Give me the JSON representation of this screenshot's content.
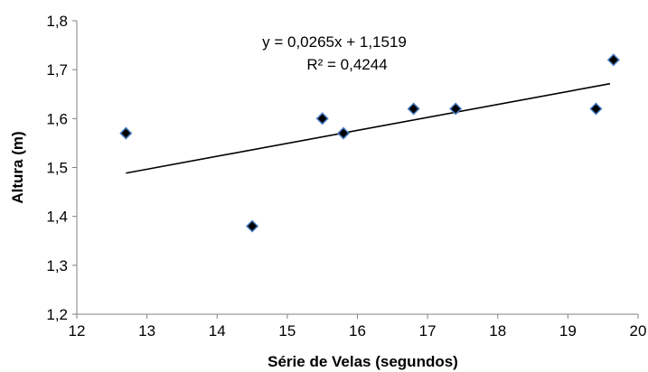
{
  "chart_data": {
    "type": "scatter",
    "title": "",
    "xlabel": "Série de Velas (segundos)",
    "ylabel": "Altura (m)",
    "xlim": [
      12,
      20
    ],
    "ylim": [
      1.2,
      1.8
    ],
    "x_ticks": [
      12,
      13,
      14,
      15,
      16,
      17,
      18,
      19,
      20
    ],
    "x_tick_labels": [
      "12",
      "13",
      "14",
      "15",
      "16",
      "17",
      "18",
      "19",
      "20"
    ],
    "y_ticks": [
      1.2,
      1.3,
      1.4,
      1.5,
      1.6,
      1.7,
      1.8
    ],
    "y_tick_labels": [
      "1,2",
      "1,3",
      "1,4",
      "1,5",
      "1,6",
      "1,7",
      "1,8"
    ],
    "grid": false,
    "series": [
      {
        "marker": "diamond",
        "color": "#000000",
        "marker_edge_color": "#4a7fc1",
        "points": [
          {
            "x": 12.7,
            "y": 1.57
          },
          {
            "x": 14.5,
            "y": 1.38
          },
          {
            "x": 15.5,
            "y": 1.6
          },
          {
            "x": 15.8,
            "y": 1.57
          },
          {
            "x": 16.8,
            "y": 1.62
          },
          {
            "x": 17.4,
            "y": 1.62
          },
          {
            "x": 19.4,
            "y": 1.62
          },
          {
            "x": 19.65,
            "y": 1.72
          }
        ]
      }
    ],
    "trendline": {
      "type": "linear",
      "slope": 0.0265,
      "intercept": 1.1519,
      "x_range": [
        12.7,
        19.6
      ],
      "color": "#000000"
    },
    "annotations": [
      "y = 0,0265x + 1,1519",
      "R² = 0,4244"
    ]
  }
}
